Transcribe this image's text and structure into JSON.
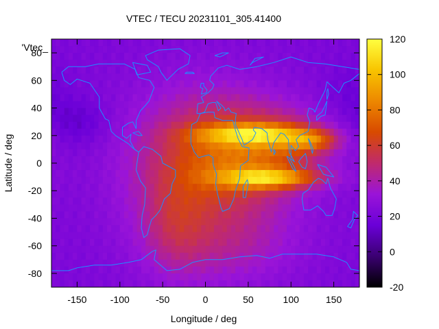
{
  "chart_data": {
    "type": "heatmap",
    "title": "VTEC / TECU 20231101_305.41400",
    "xlabel": "Longitude / deg",
    "ylabel": "Latitude / deg",
    "legend_label": "'Vtec_",
    "xlim": [
      -180,
      180
    ],
    "ylim": [
      -90,
      90
    ],
    "x_ticks": [
      -150,
      -100,
      -50,
      0,
      50,
      100,
      150
    ],
    "y_ticks": [
      -80,
      -60,
      -40,
      -20,
      0,
      20,
      40,
      60,
      80
    ],
    "colorbar": {
      "range": [
        -20,
        120
      ],
      "ticks": [
        -20,
        0,
        20,
        40,
        60,
        80,
        100,
        120
      ],
      "palette": [
        "#000000",
        "#3b0072",
        "#6a00d8",
        "#9a14d8",
        "#c02a6c",
        "#d84a00",
        "#ed8800",
        "#f8c400",
        "#ffff40"
      ]
    },
    "coastline_color": "#1e90ff",
    "grid": false,
    "field": {
      "background_tecu": 22,
      "components": [
        {
          "lon": -8,
          "lat": -5,
          "amplitude": 30,
          "lon_width": 60,
          "lat_width": 40
        },
        {
          "lon": 50,
          "lat": 8,
          "amplitude": 34,
          "lon_width": 55,
          "lat_width": 24
        },
        {
          "lon": 100,
          "lat": 15,
          "amplitude": 20,
          "lon_width": 35,
          "lat_width": 12
        },
        {
          "lon": 55,
          "lat": 21,
          "amplitude": 50,
          "lon_width": 45,
          "lat_width": 5
        },
        {
          "lon": 75,
          "lat": -11,
          "amplitude": 58,
          "lon_width": 40,
          "lat_width": 5
        },
        {
          "lon": 125,
          "lat": 16,
          "amplitude": 30,
          "lon_width": 20,
          "lat_width": 5
        },
        {
          "lon": 30,
          "lat": -60,
          "amplitude": 12,
          "lon_width": 60,
          "lat_width": 20
        },
        {
          "lon": -35,
          "lat": -45,
          "amplitude": 14,
          "lon_width": 25,
          "lat_width": 25
        },
        {
          "lon": -150,
          "lat": 30,
          "amplitude": -10,
          "lon_width": 25,
          "lat_width": 12
        },
        {
          "lon": 170,
          "lat": 50,
          "amplitude": -6,
          "lon_width": 20,
          "lat_width": 15
        }
      ]
    }
  }
}
